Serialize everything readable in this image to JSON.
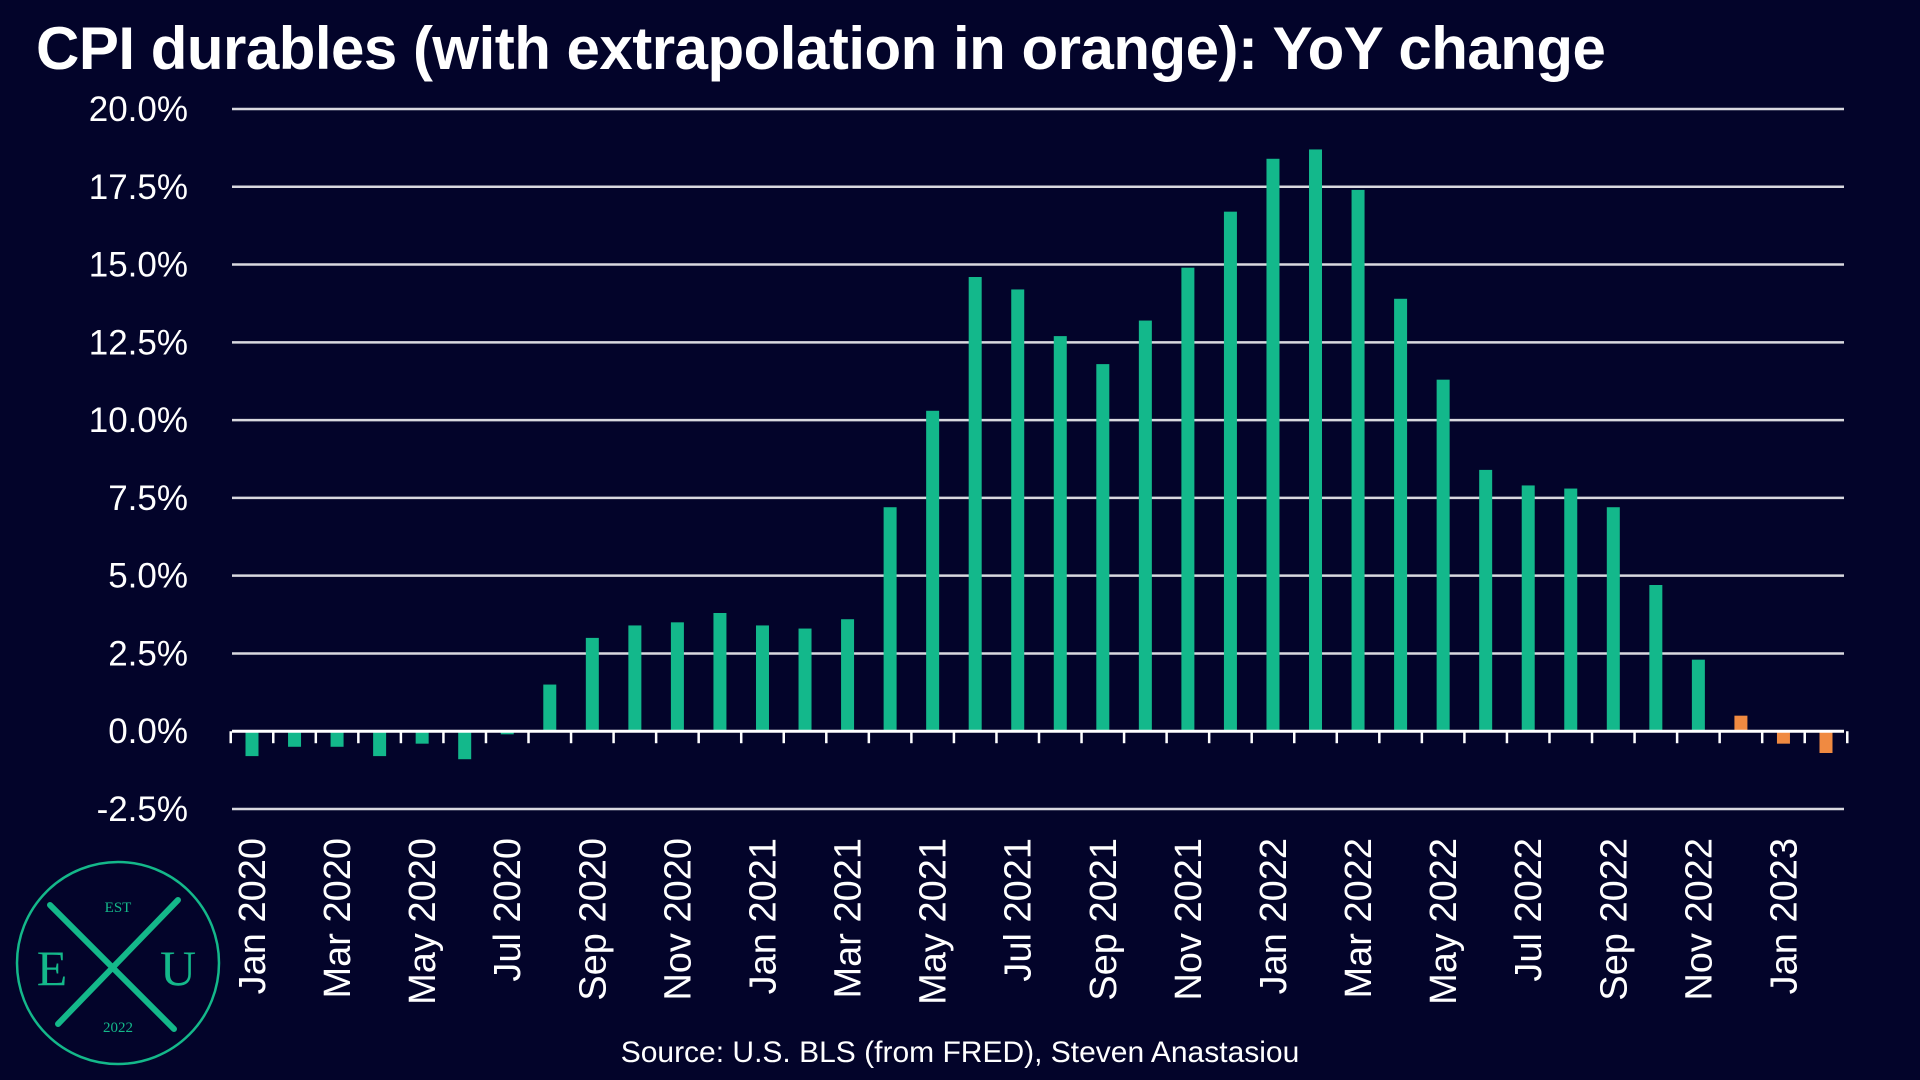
{
  "chart_data": {
    "type": "bar",
    "title": "CPI durables (with extrapolation in orange): YoY change",
    "source": "Source: U.S. BLS (from FRED), Steven Anastasiou",
    "xlabel": "",
    "ylabel": "",
    "ylim": [
      -2.5,
      20.0
    ],
    "yticks": [
      "20.0%",
      "17.5%",
      "15.0%",
      "12.5%",
      "10.0%",
      "7.5%",
      "5.0%",
      "2.5%",
      "0.0%",
      "-2.5%"
    ],
    "ytick_values": [
      20.0,
      17.5,
      15.0,
      12.5,
      10.0,
      7.5,
      5.0,
      2.5,
      0.0,
      -2.5
    ],
    "grid": true,
    "colors": {
      "actual": "#13b88b",
      "extrapolated": "#f08a41",
      "background": "#03042a",
      "grid": "#ffffff"
    },
    "categories": [
      "Jan 2020",
      "Feb 2020",
      "Mar 2020",
      "Apr 2020",
      "May 2020",
      "Jun 2020",
      "Jul 2020",
      "Aug 2020",
      "Sep 2020",
      "Oct 2020",
      "Nov 2020",
      "Dec 2020",
      "Jan 2021",
      "Feb 2021",
      "Mar 2021",
      "Apr 2021",
      "May 2021",
      "Jun 2021",
      "Jul 2021",
      "Aug 2021",
      "Sep 2021",
      "Oct 2021",
      "Nov 2021",
      "Dec 2021",
      "Jan 2022",
      "Feb 2022",
      "Mar 2022",
      "Apr 2022",
      "May 2022",
      "Jun 2022",
      "Jul 2022",
      "Aug 2022",
      "Sep 2022",
      "Oct 2022",
      "Nov 2022",
      "Dec 2022",
      "Jan 2023",
      "Feb 2023"
    ],
    "tick_labels": [
      "Jan 2020",
      "",
      "Mar 2020",
      "",
      "May 2020",
      "",
      "Jul 2020",
      "",
      "Sep 2020",
      "",
      "Nov 2020",
      "",
      "Jan 2021",
      "",
      "Mar 2021",
      "",
      "May 2021",
      "",
      "Jul 2021",
      "",
      "Sep 2021",
      "",
      "Nov 2021",
      "",
      "Jan 2022",
      "",
      "Mar 2022",
      "",
      "May 2022",
      "",
      "Jul 2022",
      "",
      "Sep 2022",
      "",
      "Nov 2022",
      "",
      "Jan 2023",
      ""
    ],
    "values": [
      -0.8,
      -0.5,
      -0.5,
      -0.8,
      -0.4,
      -0.9,
      -0.1,
      1.5,
      3.0,
      3.4,
      3.5,
      3.8,
      3.4,
      3.3,
      3.6,
      7.2,
      10.3,
      14.6,
      14.2,
      12.7,
      11.8,
      13.2,
      14.9,
      16.7,
      18.4,
      18.7,
      17.4,
      13.9,
      11.3,
      8.4,
      7.9,
      7.8,
      7.2,
      4.7,
      2.3,
      0.5,
      -0.4,
      -0.7
    ],
    "extrapolated": [
      false,
      false,
      false,
      false,
      false,
      false,
      false,
      false,
      false,
      false,
      false,
      false,
      false,
      false,
      false,
      false,
      false,
      false,
      false,
      false,
      false,
      false,
      false,
      false,
      false,
      false,
      false,
      false,
      false,
      false,
      false,
      false,
      false,
      false,
      false,
      true,
      true,
      true
    ]
  },
  "logo": {
    "est_label": "EST",
    "left_letter": "E",
    "right_letter": "U",
    "year_label": "2022",
    "color": "#14b88a"
  }
}
